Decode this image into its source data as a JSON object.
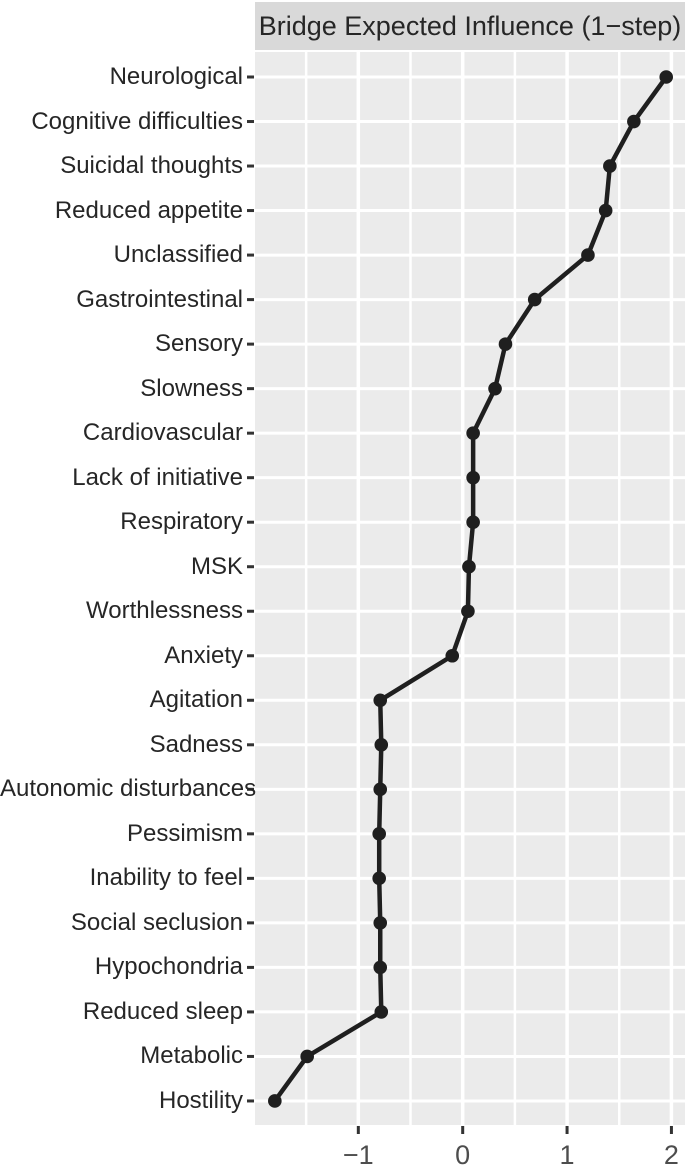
{
  "chart_data": {
    "type": "line",
    "title": "Bridge Expected Influence (1−step)",
    "category_axis": "y",
    "categories": [
      "Neurological",
      "Cognitive difficulties",
      "Suicidal thoughts",
      "Reduced appetite",
      "Unclassified",
      "Gastrointestinal",
      "Sensory",
      "Slowness",
      "Cardiovascular",
      "Lack of initiative",
      "Respiratory",
      "MSK",
      "Worthlessness",
      "Anxiety",
      "Agitation",
      "Sadness",
      "Autonomic disturbances",
      "Pessimism",
      "Inability to feel",
      "Social seclusion",
      "Hypochondria",
      "Reduced sleep",
      "Metabolic",
      "Hostility"
    ],
    "values": [
      1.95,
      1.64,
      1.41,
      1.37,
      1.2,
      0.69,
      0.41,
      0.31,
      0.1,
      0.1,
      0.1,
      0.06,
      0.05,
      -0.1,
      -0.79,
      -0.78,
      -0.79,
      -0.8,
      -0.8,
      -0.79,
      -0.79,
      -0.78,
      -1.49,
      -1.8
    ],
    "xlabel": "",
    "ylabel": "",
    "xlim": [
      -1.99,
      2.13
    ],
    "x_ticks": [
      -1,
      0,
      1,
      2
    ],
    "x_tick_labels": [
      "−1",
      "0",
      "1",
      "2"
    ],
    "x_minor_gridlines": [
      -1.5,
      -0.5,
      0.5,
      1.5
    ],
    "grid": "on",
    "legend": "none",
    "marker": "point",
    "style": {
      "strip_bg": "#d9d9d9",
      "strip_text": "#262626",
      "panel_bg": "#ebebeb",
      "grid_color": "#ffffff",
      "line_color": "#1f1f1f",
      "point_color": "#1f1f1f",
      "tick_color": "#333333",
      "y_label_color": "#262626",
      "x_label_color": "#4d4d4d"
    }
  }
}
